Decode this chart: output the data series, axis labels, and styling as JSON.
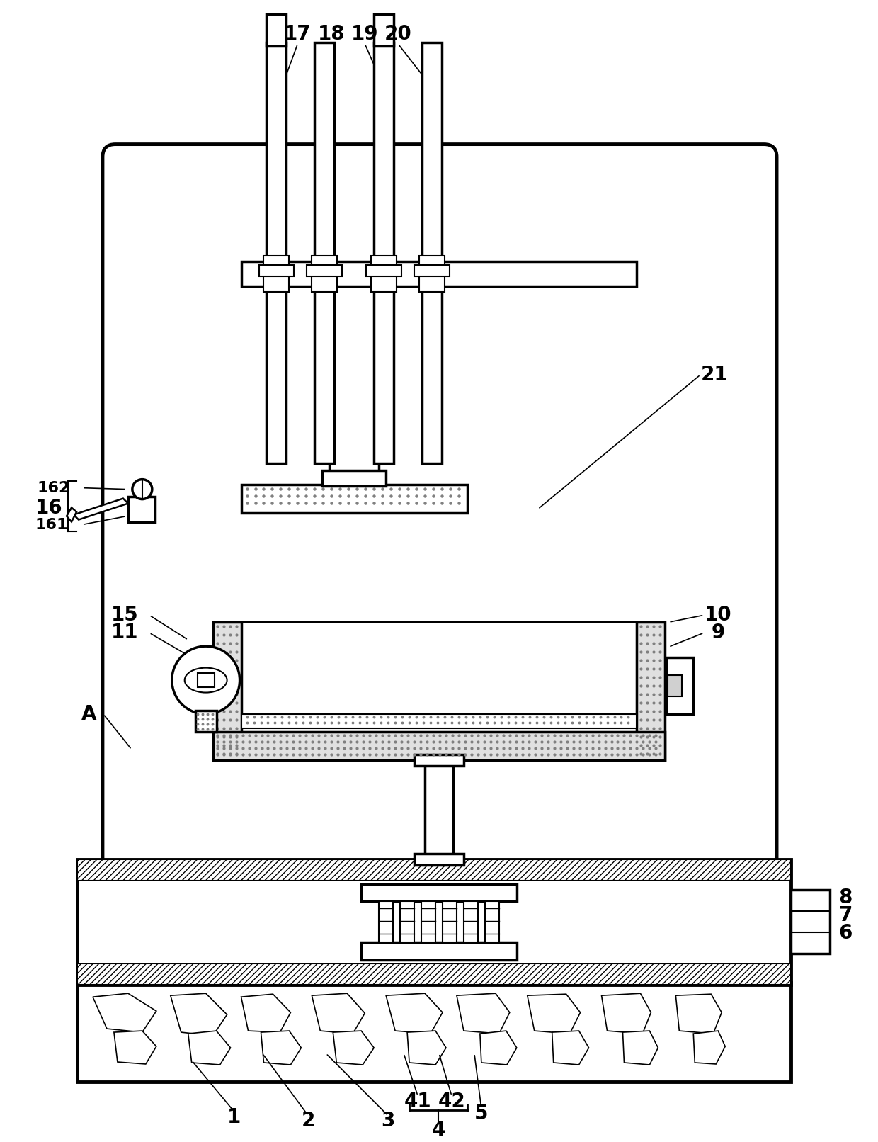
{
  "bg_color": "#ffffff",
  "lc": "#000000",
  "fig_w": 12.4,
  "fig_h": 16.12,
  "dpi": 100
}
